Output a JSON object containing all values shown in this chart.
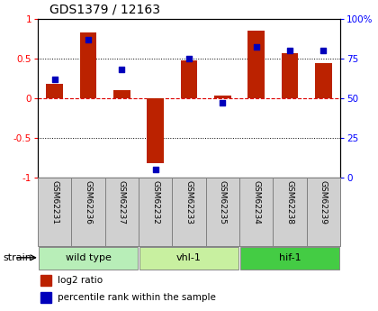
{
  "title": "GDS1379 / 12163",
  "samples": [
    "GSM62231",
    "GSM62236",
    "GSM62237",
    "GSM62232",
    "GSM62233",
    "GSM62235",
    "GSM62234",
    "GSM62238",
    "GSM62239"
  ],
  "log2_ratio": [
    0.18,
    0.83,
    0.1,
    -0.82,
    0.47,
    0.03,
    0.85,
    0.56,
    0.44
  ],
  "percentile": [
    62,
    87,
    68,
    5,
    75,
    47,
    82,
    80,
    80
  ],
  "groups": [
    {
      "label": "wild type",
      "start": 0,
      "end": 3,
      "color": "#b8eeb8"
    },
    {
      "label": "vhl-1",
      "start": 3,
      "end": 6,
      "color": "#c8f0a0"
    },
    {
      "label": "hif-1",
      "start": 6,
      "end": 9,
      "color": "#44cc44"
    }
  ],
  "ylim_left": [
    -1,
    1
  ],
  "ylim_right": [
    0,
    100
  ],
  "yticks_left": [
    -1,
    -0.5,
    0,
    0.5,
    1
  ],
  "yticks_right": [
    0,
    25,
    50,
    75,
    100
  ],
  "ytick_labels_left": [
    "-1",
    "-0.5",
    "0",
    "0.5",
    "1"
  ],
  "ytick_labels_right": [
    "0",
    "25",
    "50",
    "75",
    "100%"
  ],
  "bar_color": "#bb2200",
  "dot_color": "#0000bb",
  "bg_color": "#ffffff",
  "ref_line_color": "#dd0000",
  "bar_width": 0.5,
  "dot_size": 18,
  "label_bg": "#d0d0d0"
}
